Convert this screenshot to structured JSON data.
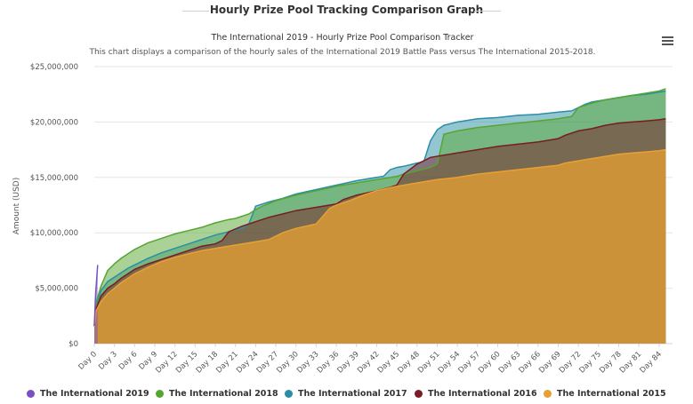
{
  "section_title": "Hourly Prize Pool Tracking Comparison Graph",
  "menu": {
    "icon": "hamburger-menu-icon"
  },
  "chart_data": {
    "type": "area",
    "title": "The International 2019 - Hourly Prize Pool Comparison Tracker",
    "subtitle": "This chart displays a comparison of the hourly sales of the International 2019 Battle Pass versus The International 2015-2018.",
    "xlabel": "",
    "ylabel": "Amount (USD)",
    "ylim": [
      0,
      25000000
    ],
    "xlim": [
      0,
      86
    ],
    "y_ticks": [
      0,
      5000000,
      10000000,
      15000000,
      20000000,
      25000000
    ],
    "y_tick_labels": [
      "$0",
      "$5,000,000",
      "$10,000,000",
      "$15,000,000",
      "$20,000,000",
      "$25,000,000"
    ],
    "x_ticks": [
      0,
      3,
      6,
      9,
      12,
      15,
      18,
      21,
      24,
      27,
      30,
      33,
      36,
      39,
      42,
      45,
      48,
      51,
      54,
      57,
      60,
      63,
      66,
      69,
      72,
      75,
      78,
      81,
      84
    ],
    "x_tick_labels": [
      "Day 0",
      "Day 3",
      "Day 6",
      "Day 9",
      "Day 12",
      "Day 15",
      "Day 18",
      "Day 21",
      "Day 24",
      "Day 27",
      "Day 30",
      "Day 33",
      "Day 36",
      "Day 39",
      "Day 42",
      "Day 45",
      "Day 48",
      "Day 51",
      "Day 54",
      "Day 57",
      "Day 60",
      "Day 63",
      "Day 66",
      "Day 69",
      "Day 72",
      "Day 75",
      "Day 78",
      "Day 81",
      "Day 84"
    ],
    "grid": true,
    "legend_position": "bottom",
    "series": [
      {
        "name": "The International 2019",
        "color": "#7b4fc4",
        "x": [
          0,
          0.2,
          0.5
        ],
        "y": [
          1600000,
          4500000,
          7100000
        ]
      },
      {
        "name": "The International 2018",
        "color": "#55a630",
        "x": [
          0,
          0.3,
          1,
          2,
          3,
          4,
          5,
          6,
          7,
          8,
          9,
          10,
          12,
          14,
          16,
          18,
          20,
          21,
          22,
          23,
          24,
          25,
          27,
          30,
          33,
          36,
          39,
          42,
          45,
          46,
          48,
          50,
          51,
          52,
          54,
          57,
          60,
          63,
          66,
          69,
          70,
          71,
          72,
          74,
          76,
          78,
          80,
          82,
          84,
          85
        ],
        "y": [
          1600000,
          3800000,
          5200000,
          6600000,
          7200000,
          7700000,
          8100000,
          8500000,
          8800000,
          9100000,
          9300000,
          9500000,
          9900000,
          10200000,
          10500000,
          10900000,
          11200000,
          11300000,
          11500000,
          11700000,
          12100000,
          12400000,
          12900000,
          13400000,
          13800000,
          14200000,
          14500000,
          14800000,
          15100000,
          15300000,
          15600000,
          15900000,
          16200000,
          18900000,
          19200000,
          19500000,
          19700000,
          19900000,
          20100000,
          20300000,
          20400000,
          20500000,
          21300000,
          21700000,
          22000000,
          22200000,
          22400000,
          22600000,
          22800000,
          23000000
        ]
      },
      {
        "name": "The International 2017",
        "color": "#2a8ea5",
        "x": [
          0,
          0.3,
          1,
          2,
          3,
          4,
          5,
          6,
          8,
          10,
          12,
          14,
          16,
          18,
          20,
          22,
          23,
          24,
          26,
          28,
          30,
          33,
          36,
          39,
          42,
          43,
          44,
          45,
          46,
          48,
          49,
          50,
          51,
          52,
          54,
          57,
          60,
          63,
          66,
          69,
          71,
          72,
          73,
          74,
          76,
          78,
          80,
          82,
          84,
          85
        ],
        "y": [
          1600000,
          3500000,
          4800000,
          5600000,
          6000000,
          6400000,
          6800000,
          7100000,
          7700000,
          8200000,
          8600000,
          9000000,
          9400000,
          9800000,
          10100000,
          10400000,
          10800000,
          12400000,
          12800000,
          13100000,
          13500000,
          13900000,
          14300000,
          14700000,
          15000000,
          15100000,
          15700000,
          15900000,
          16000000,
          16300000,
          16400000,
          18300000,
          19300000,
          19700000,
          20000000,
          20300000,
          20400000,
          20600000,
          20700000,
          20900000,
          21000000,
          21300000,
          21600000,
          21800000,
          22000000,
          22200000,
          22400000,
          22500000,
          22700000,
          22800000
        ]
      },
      {
        "name": "The International 2016",
        "color": "#7a1c24",
        "x": [
          0,
          0.3,
          1,
          2,
          3,
          4,
          5,
          6,
          8,
          10,
          12,
          14,
          16,
          18,
          19,
          20,
          22,
          24,
          26,
          28,
          30,
          33,
          36,
          37,
          39,
          42,
          44,
          45,
          46,
          48,
          50,
          52,
          54,
          57,
          60,
          63,
          66,
          69,
          70,
          72,
          74,
          76,
          78,
          80,
          82,
          84,
          85
        ],
        "y": [
          1600000,
          3200000,
          4300000,
          5000000,
          5400000,
          5900000,
          6300000,
          6700000,
          7200000,
          7600000,
          8000000,
          8400000,
          8800000,
          9000000,
          9300000,
          10100000,
          10600000,
          11000000,
          11400000,
          11700000,
          12000000,
          12300000,
          12600000,
          13000000,
          13400000,
          13800000,
          14100000,
          14300000,
          15300000,
          16200000,
          16800000,
          17000000,
          17200000,
          17500000,
          17800000,
          18000000,
          18200000,
          18500000,
          18800000,
          19200000,
          19400000,
          19700000,
          19900000,
          20000000,
          20100000,
          20200000,
          20300000
        ]
      },
      {
        "name": "The International 2015",
        "color": "#e8a033",
        "x": [
          0,
          0.3,
          1,
          2,
          3,
          4,
          5,
          6,
          8,
          10,
          12,
          14,
          16,
          18,
          20,
          22,
          24,
          26,
          27,
          28,
          30,
          33,
          34,
          35,
          36,
          38,
          40,
          42,
          45,
          48,
          51,
          54,
          57,
          60,
          63,
          66,
          69,
          70,
          72,
          74,
          76,
          78,
          80,
          82,
          84,
          85
        ],
        "y": [
          1500000,
          3000000,
          3800000,
          4500000,
          5000000,
          5500000,
          5900000,
          6300000,
          6900000,
          7400000,
          7800000,
          8100000,
          8400000,
          8600000,
          8800000,
          9000000,
          9200000,
          9400000,
          9700000,
          10000000,
          10400000,
          10800000,
          11500000,
          12200000,
          12500000,
          12900000,
          13400000,
          13800000,
          14200000,
          14500000,
          14800000,
          15000000,
          15300000,
          15500000,
          15700000,
          15900000,
          16100000,
          16300000,
          16500000,
          16700000,
          16900000,
          17100000,
          17200000,
          17300000,
          17400000,
          17500000
        ]
      }
    ]
  }
}
